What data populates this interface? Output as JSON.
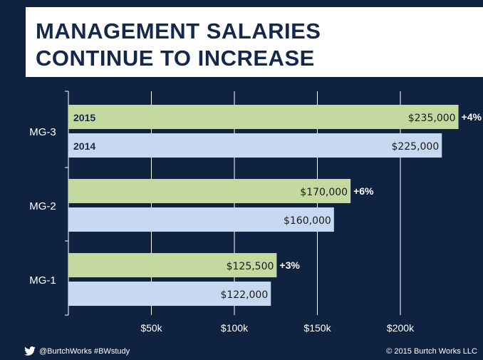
{
  "title": {
    "line1": "MANAGEMENT SALARIES",
    "line2": "CONTINUE TO INCREASE"
  },
  "footer": {
    "social": "@BurtchWorks #BWstudy",
    "copyright": "© 2015 Burtch Works LLC"
  },
  "colors": {
    "background": "#0f2341",
    "bar_2015": "#c4d9a0",
    "bar_2014": "#c7d9f1",
    "grid": "#ffffff"
  },
  "icons": {
    "social": "twitter-bird-icon"
  },
  "chart_data": {
    "type": "bar",
    "orientation": "horizontal",
    "categories": [
      "MG-3",
      "MG-2",
      "MG-1"
    ],
    "series": [
      {
        "name": "2015",
        "values": [
          235000,
          170000,
          125500
        ],
        "labels": [
          "$235,000",
          "$170,000",
          "$125,500"
        ]
      },
      {
        "name": "2014",
        "values": [
          225000,
          160000,
          122000
        ],
        "labels": [
          "$225,000",
          "$160,000",
          "$122,000"
        ]
      }
    ],
    "changes": [
      "+4%",
      "+6%",
      "+3%"
    ],
    "x_ticks": [
      50000,
      100000,
      150000,
      200000
    ],
    "x_tick_labels": [
      "$50k",
      "$100k",
      "$150k",
      "$200k"
    ],
    "xlim": [
      0,
      250000
    ],
    "grid": true,
    "legend": "inline-on-bars"
  }
}
